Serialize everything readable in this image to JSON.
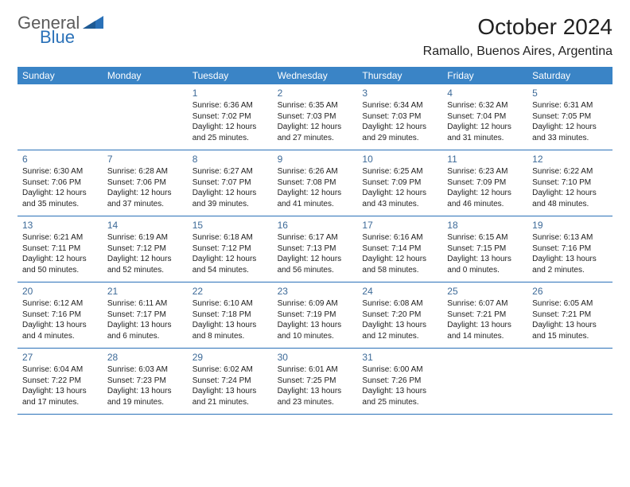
{
  "logo": {
    "word1": "General",
    "word2": "Blue",
    "word1_color": "#5b5b5b",
    "word2_color": "#2a71b8",
    "triangle_color": "#2a71b8"
  },
  "title": "October 2024",
  "location": "Ramallo, Buenos Aires, Argentina",
  "colors": {
    "header_bg": "#3a84c6",
    "header_fg": "#ffffff",
    "daynum": "#3d6a98",
    "rule": "#2a71b8",
    "text": "#222222",
    "page_bg": "#ffffff"
  },
  "fonts": {
    "title_pt": 28,
    "location_pt": 16,
    "dow_pt": 12,
    "daynum_pt": 12,
    "body_pt": 10
  },
  "days_of_week": [
    "Sunday",
    "Monday",
    "Tuesday",
    "Wednesday",
    "Thursday",
    "Friday",
    "Saturday"
  ],
  "weeks": [
    [
      {
        "day": "",
        "sunrise": "",
        "sunset": "",
        "daylight": ""
      },
      {
        "day": "",
        "sunrise": "",
        "sunset": "",
        "daylight": ""
      },
      {
        "day": "1",
        "sunrise": "Sunrise: 6:36 AM",
        "sunset": "Sunset: 7:02 PM",
        "daylight": "Daylight: 12 hours and 25 minutes."
      },
      {
        "day": "2",
        "sunrise": "Sunrise: 6:35 AM",
        "sunset": "Sunset: 7:03 PM",
        "daylight": "Daylight: 12 hours and 27 minutes."
      },
      {
        "day": "3",
        "sunrise": "Sunrise: 6:34 AM",
        "sunset": "Sunset: 7:03 PM",
        "daylight": "Daylight: 12 hours and 29 minutes."
      },
      {
        "day": "4",
        "sunrise": "Sunrise: 6:32 AM",
        "sunset": "Sunset: 7:04 PM",
        "daylight": "Daylight: 12 hours and 31 minutes."
      },
      {
        "day": "5",
        "sunrise": "Sunrise: 6:31 AM",
        "sunset": "Sunset: 7:05 PM",
        "daylight": "Daylight: 12 hours and 33 minutes."
      }
    ],
    [
      {
        "day": "6",
        "sunrise": "Sunrise: 6:30 AM",
        "sunset": "Sunset: 7:06 PM",
        "daylight": "Daylight: 12 hours and 35 minutes."
      },
      {
        "day": "7",
        "sunrise": "Sunrise: 6:28 AM",
        "sunset": "Sunset: 7:06 PM",
        "daylight": "Daylight: 12 hours and 37 minutes."
      },
      {
        "day": "8",
        "sunrise": "Sunrise: 6:27 AM",
        "sunset": "Sunset: 7:07 PM",
        "daylight": "Daylight: 12 hours and 39 minutes."
      },
      {
        "day": "9",
        "sunrise": "Sunrise: 6:26 AM",
        "sunset": "Sunset: 7:08 PM",
        "daylight": "Daylight: 12 hours and 41 minutes."
      },
      {
        "day": "10",
        "sunrise": "Sunrise: 6:25 AM",
        "sunset": "Sunset: 7:09 PM",
        "daylight": "Daylight: 12 hours and 43 minutes."
      },
      {
        "day": "11",
        "sunrise": "Sunrise: 6:23 AM",
        "sunset": "Sunset: 7:09 PM",
        "daylight": "Daylight: 12 hours and 46 minutes."
      },
      {
        "day": "12",
        "sunrise": "Sunrise: 6:22 AM",
        "sunset": "Sunset: 7:10 PM",
        "daylight": "Daylight: 12 hours and 48 minutes."
      }
    ],
    [
      {
        "day": "13",
        "sunrise": "Sunrise: 6:21 AM",
        "sunset": "Sunset: 7:11 PM",
        "daylight": "Daylight: 12 hours and 50 minutes."
      },
      {
        "day": "14",
        "sunrise": "Sunrise: 6:19 AM",
        "sunset": "Sunset: 7:12 PM",
        "daylight": "Daylight: 12 hours and 52 minutes."
      },
      {
        "day": "15",
        "sunrise": "Sunrise: 6:18 AM",
        "sunset": "Sunset: 7:12 PM",
        "daylight": "Daylight: 12 hours and 54 minutes."
      },
      {
        "day": "16",
        "sunrise": "Sunrise: 6:17 AM",
        "sunset": "Sunset: 7:13 PM",
        "daylight": "Daylight: 12 hours and 56 minutes."
      },
      {
        "day": "17",
        "sunrise": "Sunrise: 6:16 AM",
        "sunset": "Sunset: 7:14 PM",
        "daylight": "Daylight: 12 hours and 58 minutes."
      },
      {
        "day": "18",
        "sunrise": "Sunrise: 6:15 AM",
        "sunset": "Sunset: 7:15 PM",
        "daylight": "Daylight: 13 hours and 0 minutes."
      },
      {
        "day": "19",
        "sunrise": "Sunrise: 6:13 AM",
        "sunset": "Sunset: 7:16 PM",
        "daylight": "Daylight: 13 hours and 2 minutes."
      }
    ],
    [
      {
        "day": "20",
        "sunrise": "Sunrise: 6:12 AM",
        "sunset": "Sunset: 7:16 PM",
        "daylight": "Daylight: 13 hours and 4 minutes."
      },
      {
        "day": "21",
        "sunrise": "Sunrise: 6:11 AM",
        "sunset": "Sunset: 7:17 PM",
        "daylight": "Daylight: 13 hours and 6 minutes."
      },
      {
        "day": "22",
        "sunrise": "Sunrise: 6:10 AM",
        "sunset": "Sunset: 7:18 PM",
        "daylight": "Daylight: 13 hours and 8 minutes."
      },
      {
        "day": "23",
        "sunrise": "Sunrise: 6:09 AM",
        "sunset": "Sunset: 7:19 PM",
        "daylight": "Daylight: 13 hours and 10 minutes."
      },
      {
        "day": "24",
        "sunrise": "Sunrise: 6:08 AM",
        "sunset": "Sunset: 7:20 PM",
        "daylight": "Daylight: 13 hours and 12 minutes."
      },
      {
        "day": "25",
        "sunrise": "Sunrise: 6:07 AM",
        "sunset": "Sunset: 7:21 PM",
        "daylight": "Daylight: 13 hours and 14 minutes."
      },
      {
        "day": "26",
        "sunrise": "Sunrise: 6:05 AM",
        "sunset": "Sunset: 7:21 PM",
        "daylight": "Daylight: 13 hours and 15 minutes."
      }
    ],
    [
      {
        "day": "27",
        "sunrise": "Sunrise: 6:04 AM",
        "sunset": "Sunset: 7:22 PM",
        "daylight": "Daylight: 13 hours and 17 minutes."
      },
      {
        "day": "28",
        "sunrise": "Sunrise: 6:03 AM",
        "sunset": "Sunset: 7:23 PM",
        "daylight": "Daylight: 13 hours and 19 minutes."
      },
      {
        "day": "29",
        "sunrise": "Sunrise: 6:02 AM",
        "sunset": "Sunset: 7:24 PM",
        "daylight": "Daylight: 13 hours and 21 minutes."
      },
      {
        "day": "30",
        "sunrise": "Sunrise: 6:01 AM",
        "sunset": "Sunset: 7:25 PM",
        "daylight": "Daylight: 13 hours and 23 minutes."
      },
      {
        "day": "31",
        "sunrise": "Sunrise: 6:00 AM",
        "sunset": "Sunset: 7:26 PM",
        "daylight": "Daylight: 13 hours and 25 minutes."
      },
      {
        "day": "",
        "sunrise": "",
        "sunset": "",
        "daylight": ""
      },
      {
        "day": "",
        "sunrise": "",
        "sunset": "",
        "daylight": ""
      }
    ]
  ]
}
